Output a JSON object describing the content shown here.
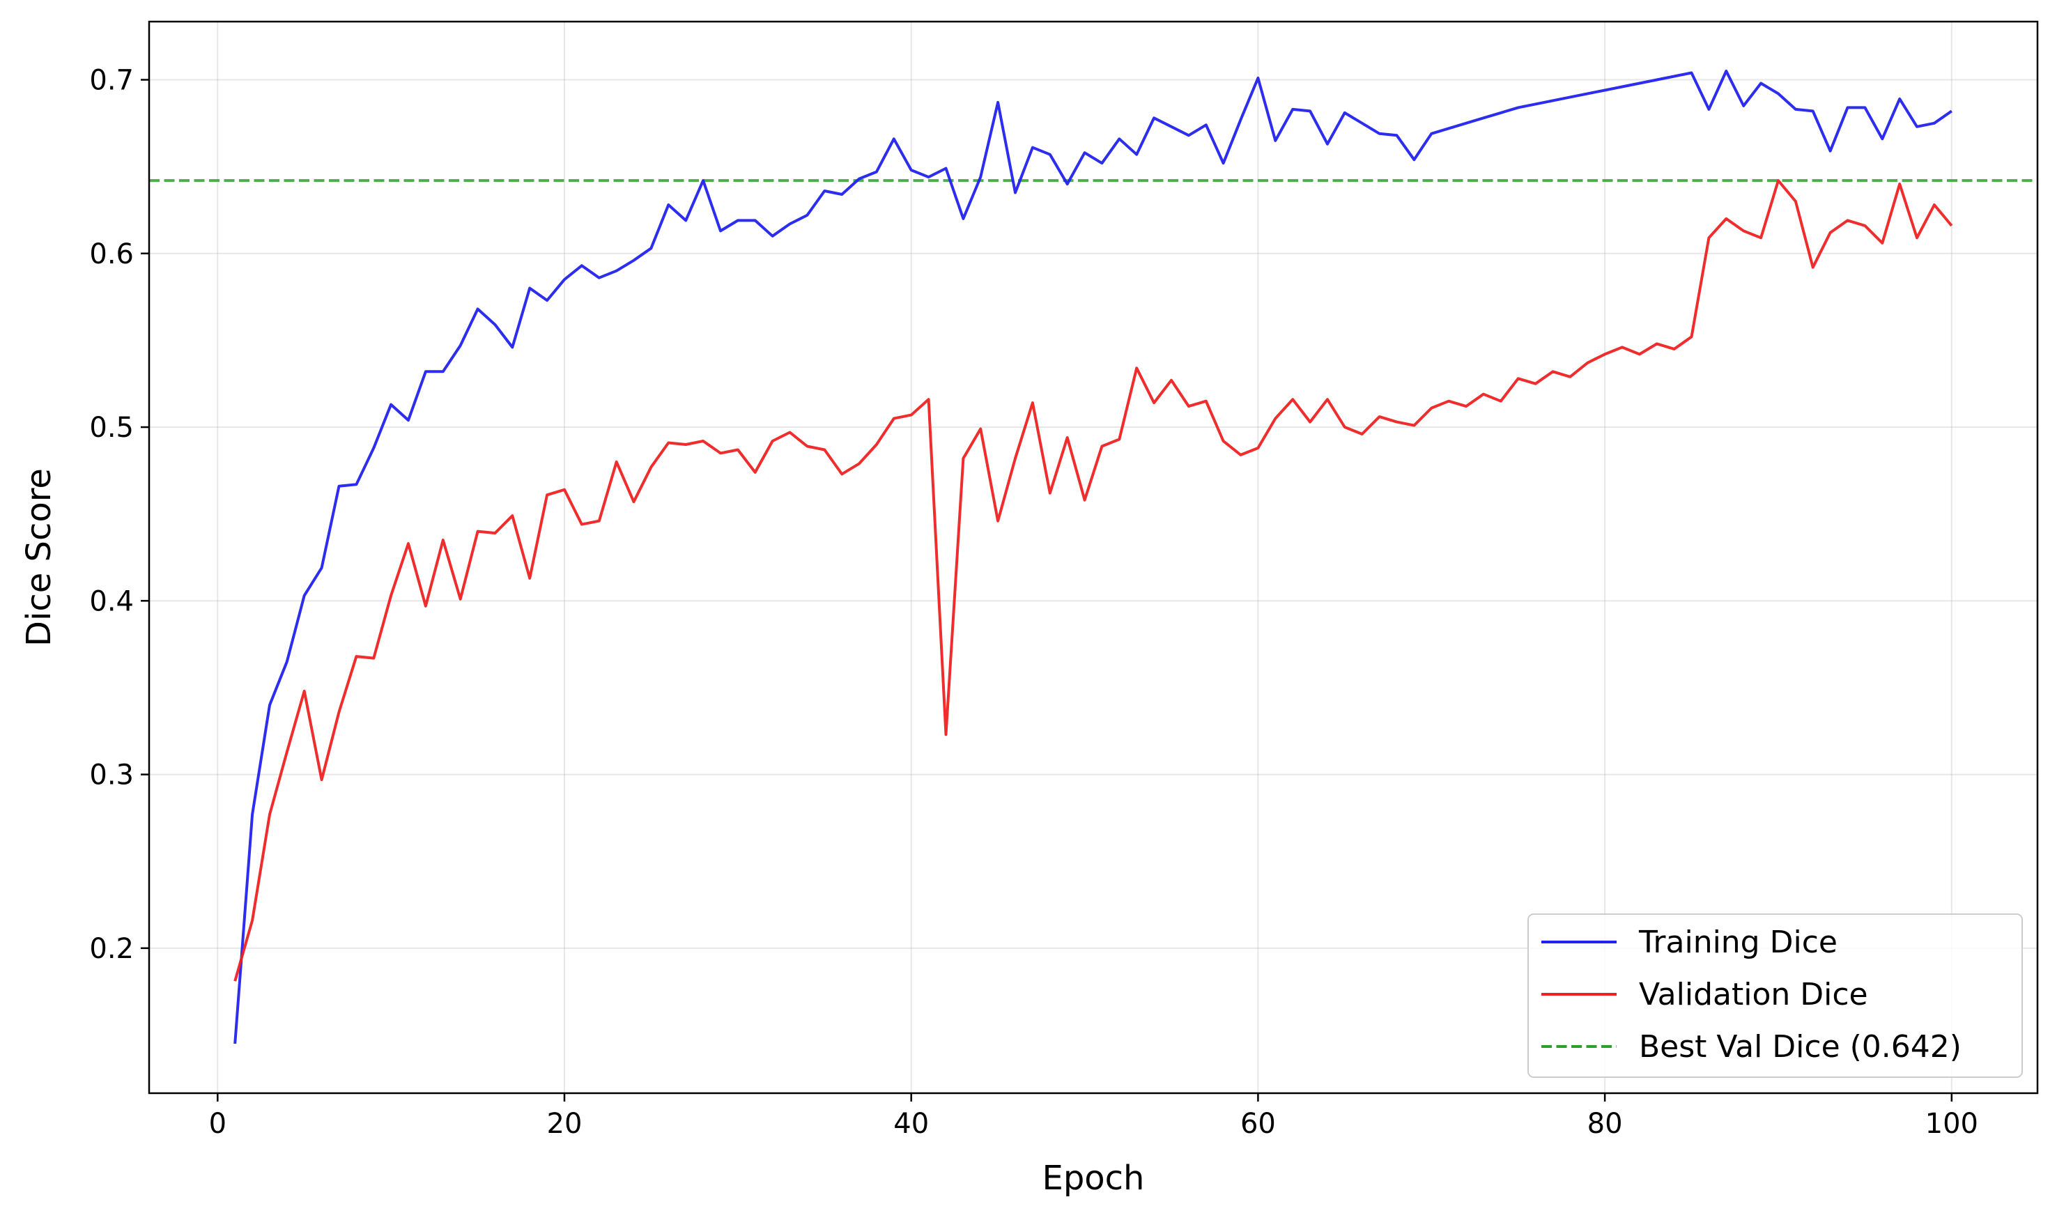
{
  "chart_data": {
    "type": "line",
    "title": "",
    "xlabel": "Epoch",
    "ylabel": "Dice Score",
    "xlim": [
      -3.95,
      104.95
    ],
    "ylim": [
      0.1165,
      0.7335
    ],
    "xticks": [
      0,
      20,
      40,
      60,
      80,
      100
    ],
    "xtick_labels": [
      "0",
      "20",
      "40",
      "60",
      "80",
      "100"
    ],
    "yticks": [
      0.2,
      0.3,
      0.4,
      0.5,
      0.6,
      0.7
    ],
    "ytick_labels": [
      "0.2",
      "0.3",
      "0.4",
      "0.5",
      "0.6",
      "0.7"
    ],
    "grid": true,
    "legend_position": "lower right",
    "x": [
      1,
      2,
      3,
      4,
      5,
      6,
      7,
      8,
      9,
      10,
      11,
      12,
      13,
      14,
      15,
      16,
      17,
      18,
      19,
      20,
      21,
      22,
      23,
      24,
      25,
      26,
      27,
      28,
      29,
      30,
      31,
      32,
      33,
      34,
      35,
      36,
      37,
      38,
      39,
      40,
      41,
      42,
      43,
      44,
      45,
      46,
      47,
      48,
      49,
      50,
      51,
      52,
      53,
      54,
      55,
      56,
      57,
      58,
      59,
      60,
      61,
      62,
      63,
      64,
      65,
      66,
      67,
      68,
      69,
      70,
      71,
      72,
      73,
      74,
      75,
      76,
      77,
      78,
      79,
      80,
      81,
      82,
      83,
      84,
      85,
      86,
      87,
      88,
      89,
      90,
      91,
      92,
      93,
      94,
      95,
      96,
      97,
      98,
      99,
      100
    ],
    "series": [
      {
        "name": "Training Dice",
        "color": "#2222ee",
        "style": "solid",
        "values": [
          0.145,
          0.277,
          0.34,
          0.365,
          0.403,
          0.419,
          0.466,
          0.467,
          0.488,
          0.513,
          0.504,
          0.532,
          0.532,
          0.547,
          0.568,
          0.559,
          0.546,
          0.58,
          0.573,
          0.585,
          0.593,
          0.586,
          0.59,
          0.596,
          0.603,
          0.628,
          0.619,
          0.642,
          0.613,
          0.619,
          0.619,
          0.61,
          0.617,
          0.622,
          0.636,
          0.634,
          0.643,
          0.647,
          0.666,
          0.648,
          0.644,
          0.649,
          0.62,
          0.644,
          0.687,
          0.635,
          0.661,
          0.657,
          0.64,
          0.658,
          0.652,
          0.666,
          0.657,
          0.678,
          0.673,
          0.668,
          0.674,
          0.652,
          0.677,
          0.701,
          0.665,
          0.683,
          0.682,
          0.663,
          0.681,
          0.675,
          0.669,
          0.668,
          0.654,
          0.669,
          0.672,
          0.675,
          0.678,
          0.681,
          0.684,
          0.686,
          0.688,
          0.69,
          0.692,
          0.694,
          0.696,
          0.698,
          0.7,
          0.702,
          0.704,
          0.683,
          0.705,
          0.685,
          0.698,
          0.692,
          0.683,
          0.682,
          0.659,
          0.684,
          0.684,
          0.666,
          0.689,
          0.673,
          0.675,
          0.682
        ]
      },
      {
        "name": "Validation Dice",
        "color": "#ee2222",
        "style": "solid",
        "values": [
          0.181,
          0.216,
          0.277,
          0.313,
          0.348,
          0.297,
          0.336,
          0.368,
          0.367,
          0.403,
          0.433,
          0.397,
          0.435,
          0.401,
          0.44,
          0.439,
          0.449,
          0.413,
          0.461,
          0.464,
          0.444,
          0.446,
          0.48,
          0.457,
          0.477,
          0.491,
          0.49,
          0.492,
          0.485,
          0.487,
          0.474,
          0.492,
          0.497,
          0.489,
          0.487,
          0.473,
          0.479,
          0.49,
          0.505,
          0.507,
          0.516,
          0.323,
          0.482,
          0.499,
          0.446,
          0.482,
          0.514,
          0.462,
          0.494,
          0.458,
          0.489,
          0.493,
          0.534,
          0.514,
          0.527,
          0.512,
          0.515,
          0.492,
          0.484,
          0.488,
          0.505,
          0.516,
          0.503,
          0.516,
          0.5,
          0.496,
          0.506,
          0.503,
          0.501,
          0.511,
          0.515,
          0.512,
          0.519,
          0.515,
          0.528,
          0.525,
          0.532,
          0.529,
          0.537,
          0.542,
          0.546,
          0.542,
          0.548,
          0.545,
          0.552,
          0.609,
          0.62,
          0.613,
          0.609,
          0.642,
          0.63,
          0.592,
          0.612,
          0.619,
          0.616,
          0.606,
          0.64,
          0.609,
          0.628,
          0.616
        ]
      },
      {
        "name": "Best Val Dice (0.642)",
        "color": "#2ca02c",
        "style": "dashed",
        "hline": 0.642
      }
    ]
  }
}
